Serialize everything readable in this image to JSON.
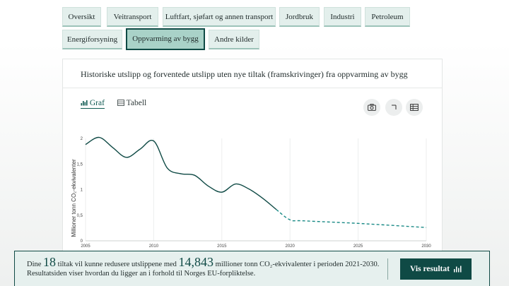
{
  "tabs": [
    {
      "label": "Oversikt",
      "active": false
    },
    {
      "label": "Veitransport",
      "active": false
    },
    {
      "label": "Luftfart, sjøfart og annen transport",
      "active": false
    },
    {
      "label": "Jordbruk",
      "active": false
    },
    {
      "label": "Industri",
      "active": false
    },
    {
      "label": "Petroleum",
      "active": false
    },
    {
      "label": "Energiforsyning",
      "active": false
    },
    {
      "label": "Oppvarming av bygg",
      "active": true
    },
    {
      "label": "Andre kilder",
      "active": false
    }
  ],
  "card": {
    "title": "Historiske utslipp og forventede utslipp uten nye tiltak (framskrivinger) fra oppvarming av bygg",
    "view_graf": "Graf",
    "view_tabell": "Tabell",
    "camera_icon": "camera-icon",
    "expand_icon": "expand-icon",
    "table_icon": "table-icon"
  },
  "chart_data": {
    "type": "line",
    "ylabel": "Millioner tonn CO₂-ekvivalenter",
    "xlim": [
      2005,
      2030
    ],
    "ylim": [
      0,
      2
    ],
    "x_ticks": [
      2005,
      2010,
      2015,
      2020,
      2025,
      2030
    ],
    "y_ticks": [
      {
        "value": 0,
        "label": "0"
      },
      {
        "value": 0.5,
        "label": "0,5"
      },
      {
        "value": 1,
        "label": "1"
      },
      {
        "value": 1.5,
        "label": "1,5"
      },
      {
        "value": 2,
        "label": "2"
      }
    ],
    "grid": true,
    "series": [
      {
        "style": "solid",
        "color": "#0f4a45",
        "x": [
          2005,
          2006,
          2007,
          2008,
          2009,
          2010,
          2011,
          2012,
          2013,
          2014,
          2015,
          2016,
          2017,
          2018,
          2019
        ],
        "values": [
          1.88,
          2.02,
          1.82,
          1.63,
          1.79,
          1.95,
          1.42,
          1.31,
          1.28,
          1.07,
          0.95,
          1.11,
          1.01,
          0.83,
          0.61
        ]
      },
      {
        "style": "dashed",
        "color": "#1a8a86",
        "x": [
          2019,
          2020,
          2021,
          2025,
          2030
        ],
        "values": [
          0.61,
          0.41,
          0.39,
          0.34,
          0.26
        ]
      }
    ]
  },
  "banner": {
    "text_1": "Dine ",
    "count": "18",
    "text_2": " tiltak vil kunne redusere utslippene med ",
    "amount": "14,843",
    "text_3": " millioner tonn CO₂-ekvivalenter i perioden 2021-2030. Resultatsiden viser hvordan du ligger an i forhold til Norges EU-forpliktelse.",
    "button_label": "Vis resultat"
  },
  "colors": {
    "accent": "#0f4a45",
    "tab_bg": "#e3efec",
    "tab_active": "#a9d2c8",
    "projection": "#1a8a86"
  }
}
